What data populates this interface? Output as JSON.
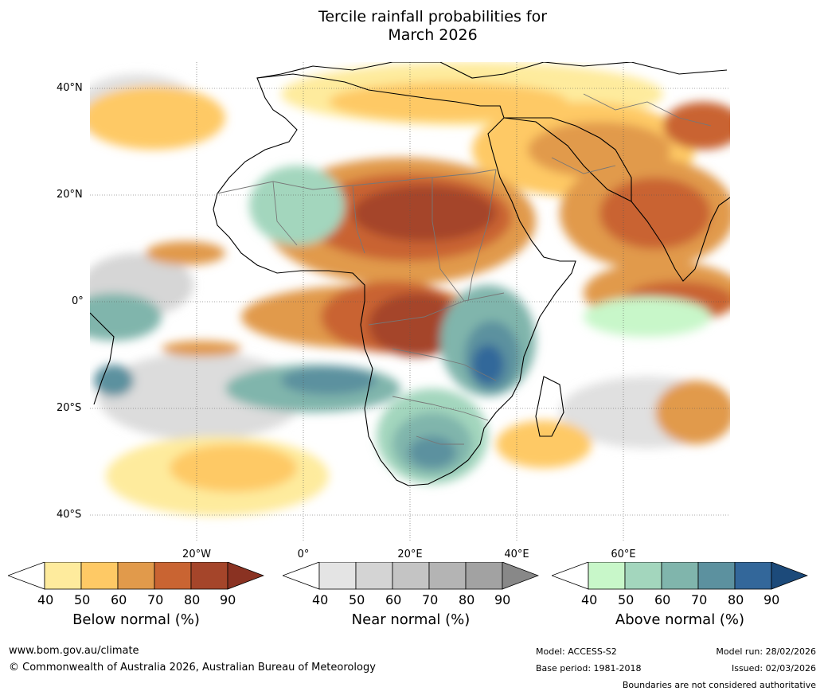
{
  "title_line1": "Tercile rainfall probabilities for",
  "title_line2": "March 2026",
  "map": {
    "lat_labels": [
      "40°N",
      "20°N",
      "0°",
      "20°S",
      "40°S"
    ],
    "lon_labels": [
      "20°W",
      "0°",
      "20°E",
      "40°E",
      "60°E"
    ]
  },
  "legends": [
    {
      "title": "Below normal (%)",
      "ticks": [
        "40",
        "50",
        "60",
        "70",
        "80",
        "90"
      ],
      "colors": [
        "#ffffff",
        "#feeb9d",
        "#fec965",
        "#e19a4b",
        "#c96432",
        "#a5452a",
        "#8a3222"
      ]
    },
    {
      "title": "Near normal (%)",
      "ticks": [
        "40",
        "50",
        "60",
        "70",
        "80",
        "90"
      ],
      "colors": [
        "#ffffff",
        "#e4e4e4",
        "#d4d4d4",
        "#c4c4c4",
        "#b4b4b4",
        "#a2a2a2",
        "#888888"
      ]
    },
    {
      "title": "Above normal (%)",
      "ticks": [
        "40",
        "50",
        "60",
        "70",
        "80",
        "90"
      ],
      "colors": [
        "#ffffff",
        "#c8f7c9",
        "#a3d6bd",
        "#80b5ac",
        "#5c919f",
        "#33679a",
        "#1c4a7a"
      ]
    }
  ],
  "footer": {
    "website": "www.bom.gov.au/climate",
    "copyright": "© Commonwealth of Australia 2026, Australian Bureau of Meteorology",
    "model": "Model: ACCESS-S2",
    "base_period": "Base period: 1981-2018",
    "model_run": "Model run: 28/02/2026",
    "issued": "Issued: 02/03/2026",
    "disclaimer": "Boundaries are not considered authoritative"
  }
}
